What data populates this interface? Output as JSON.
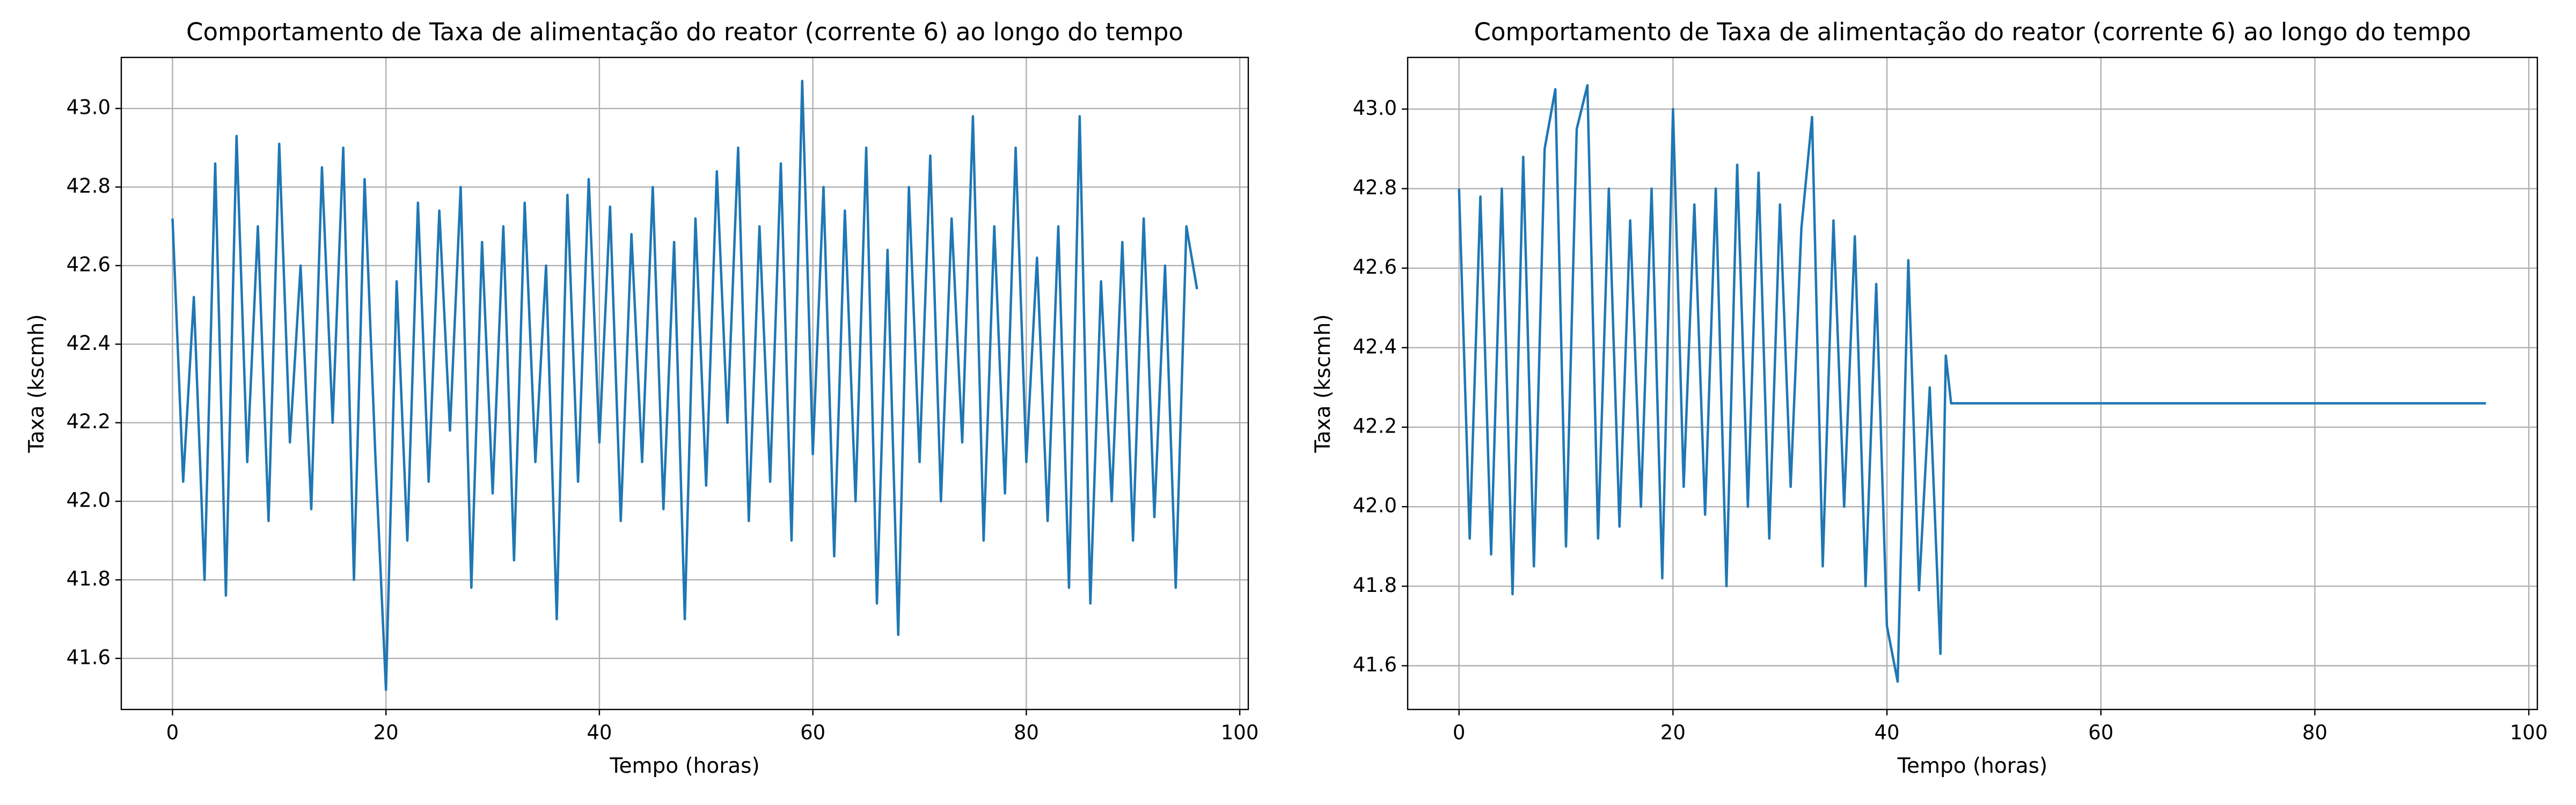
{
  "chart_data": [
    {
      "type": "line",
      "title": "Comportamento de Taxa de alimentação do reator (corrente 6) ao longo do tempo",
      "xlabel": "Tempo (horas)",
      "ylabel": "Taxa (kscmh)",
      "color": "#1f77b4",
      "grid": true,
      "xlim": [
        -4.8,
        100.8
      ],
      "ylim": [
        41.47,
        43.13
      ],
      "xticks": [
        0,
        20,
        40,
        60,
        80,
        100
      ],
      "yticks": [
        41.6,
        41.8,
        {
          "value": 42,
          "label": "42.0"
        },
        42.2,
        42.4,
        42.6,
        42.8,
        {
          "value": 43,
          "label": "43.0"
        }
      ],
      "x": [
        0,
        1,
        2,
        3,
        4,
        5,
        6,
        7,
        8,
        9,
        10,
        11,
        12,
        13,
        14,
        15,
        16,
        17,
        18,
        19,
        20,
        21,
        22,
        23,
        24,
        25,
        26,
        27,
        28,
        29,
        30,
        31,
        32,
        33,
        34,
        35,
        36,
        37,
        38,
        39,
        40,
        41,
        42,
        43,
        44,
        45,
        46,
        47,
        48,
        49,
        50,
        51,
        52,
        53,
        54,
        55,
        56,
        57,
        58,
        59,
        60,
        61,
        62,
        63,
        64,
        65,
        66,
        67,
        68,
        69,
        70,
        71,
        72,
        73,
        74,
        75,
        76,
        77,
        78,
        79,
        80,
        81,
        82,
        83,
        84,
        85,
        86,
        87,
        88,
        89,
        90,
        91,
        92,
        93,
        94,
        95,
        96
      ],
      "values": [
        42.72,
        42.05,
        42.52,
        41.8,
        42.86,
        41.76,
        42.93,
        42.1,
        42.7,
        41.95,
        42.91,
        42.15,
        42.6,
        41.98,
        42.85,
        42.2,
        42.9,
        41.8,
        42.82,
        42.12,
        41.52,
        42.56,
        41.9,
        42.76,
        42.05,
        42.74,
        42.18,
        42.8,
        41.78,
        42.66,
        42.02,
        42.7,
        41.85,
        42.76,
        42.1,
        42.6,
        41.7,
        42.78,
        42.05,
        42.82,
        42.15,
        42.75,
        41.95,
        42.68,
        42.1,
        42.8,
        41.98,
        42.66,
        41.7,
        42.72,
        42.04,
        42.84,
        42.2,
        42.9,
        41.95,
        42.7,
        42.05,
        42.86,
        41.9,
        43.07,
        42.12,
        42.8,
        41.86,
        42.74,
        42.0,
        42.9,
        41.74,
        42.64,
        41.66,
        42.8,
        42.1,
        42.88,
        42.0,
        42.72,
        42.15,
        42.98,
        41.9,
        42.7,
        42.02,
        42.9,
        42.1,
        42.62,
        41.95,
        42.7,
        41.78,
        42.98,
        41.74,
        42.56,
        42.0,
        42.66,
        41.9,
        42.72,
        41.96,
        42.6,
        41.78,
        42.7,
        42.54
      ]
    },
    {
      "type": "line",
      "title": "Comportamento de Taxa de alimentação do reator (corrente 6) ao longo do tempo",
      "xlabel": "Tempo (horas)",
      "ylabel": "Taxa (kscmh)",
      "color": "#1f77b4",
      "grid": true,
      "xlim": [
        -4.8,
        100.8
      ],
      "ylim": [
        41.49,
        43.13
      ],
      "xticks": [
        0,
        20,
        40,
        60,
        80,
        100
      ],
      "yticks": [
        41.6,
        41.8,
        {
          "value": 42,
          "label": "42.0"
        },
        42.2,
        42.4,
        42.6,
        42.8,
        {
          "value": 43,
          "label": "43.0"
        }
      ],
      "x": [
        0,
        1,
        2,
        3,
        4,
        5,
        6,
        7,
        8,
        9,
        10,
        11,
        12,
        13,
        14,
        15,
        16,
        17,
        18,
        19,
        20,
        21,
        22,
        23,
        24,
        25,
        26,
        27,
        28,
        29,
        30,
        31,
        32,
        33,
        34,
        35,
        36,
        37,
        38,
        39,
        40,
        41,
        42,
        43,
        44,
        45,
        45.5,
        46,
        96
      ],
      "values": [
        42.8,
        41.92,
        42.78,
        41.88,
        42.8,
        41.78,
        42.88,
        41.85,
        42.9,
        43.05,
        41.9,
        42.95,
        43.06,
        41.92,
        42.8,
        41.95,
        42.72,
        42.0,
        42.8,
        41.82,
        43.0,
        42.05,
        42.76,
        41.98,
        42.8,
        41.8,
        42.86,
        42.0,
        42.84,
        41.92,
        42.76,
        42.05,
        42.7,
        42.98,
        41.85,
        42.72,
        42.0,
        42.68,
        41.8,
        42.56,
        41.7,
        41.56,
        42.62,
        41.79,
        42.3,
        41.63,
        42.38,
        42.26,
        42.26
      ]
    }
  ]
}
